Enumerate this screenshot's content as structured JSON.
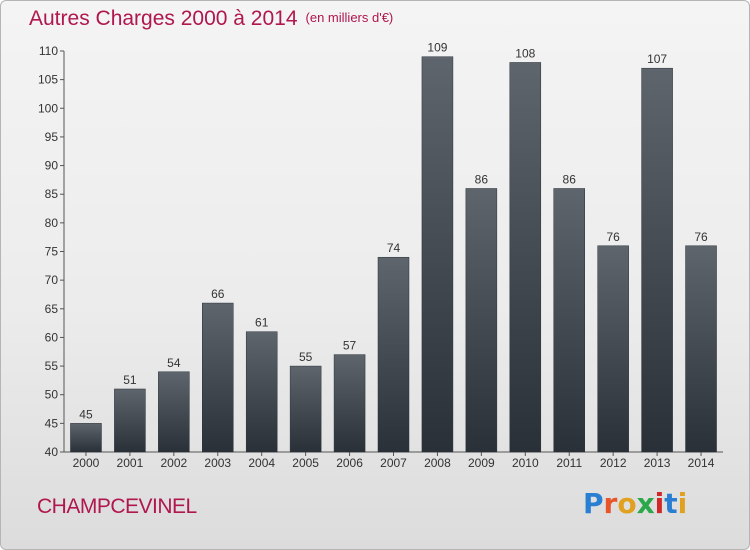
{
  "title": "Autres Charges 2000 à 2014",
  "subtitle": "(en milliers d'€)",
  "commune": "CHAMPCEVINEL",
  "logo": {
    "letters": [
      "P",
      "r",
      "o",
      "x",
      "i",
      "t",
      "i"
    ],
    "colors": [
      "#2a7fd3",
      "#e8552a",
      "#e0a020",
      "#2aa84a",
      "#d0282a",
      "#2a7fd3",
      "#e0a020"
    ]
  },
  "chart_data": {
    "type": "bar",
    "title": "Autres Charges 2000 à 2014",
    "subtitle": "(en milliers d'€)",
    "categories": [
      "2000",
      "2001",
      "2002",
      "2003",
      "2004",
      "2005",
      "2006",
      "2007",
      "2008",
      "2009",
      "2010",
      "2011",
      "2012",
      "2013",
      "2014"
    ],
    "values": [
      45,
      51,
      54,
      66,
      61,
      55,
      57,
      74,
      109,
      86,
      108,
      86,
      76,
      107,
      76
    ],
    "ylim": [
      40,
      110
    ],
    "yticks": [
      40,
      45,
      50,
      55,
      60,
      65,
      70,
      75,
      80,
      85,
      90,
      95,
      100,
      105,
      110
    ],
    "grid": false,
    "bar_color": "#3a4048"
  }
}
